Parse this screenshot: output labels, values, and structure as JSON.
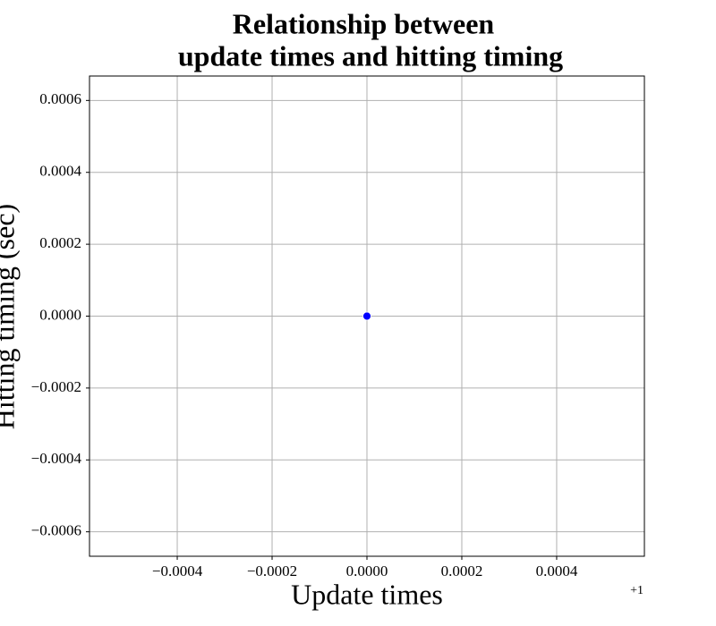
{
  "chart_data": {
    "type": "scatter",
    "title": [
      "Relationship between",
      "update times and hitting timing"
    ],
    "xlabel": "Update times",
    "ylabel": "Hitting timing (sec)",
    "x_offset_label": "+1",
    "x": [
      1
    ],
    "y": [
      0
    ],
    "color": "blue",
    "xlim": [
      0.999415,
      1.000585
    ],
    "ylim": [
      -0.000668,
      0.000668
    ],
    "xticks": [
      {
        "value": 0.9996,
        "label": "−0.0004"
      },
      {
        "value": 0.9998,
        "label": "−0.0002"
      },
      {
        "value": 1.0,
        "label": "0.0000"
      },
      {
        "value": 1.0002,
        "label": "0.0002"
      },
      {
        "value": 1.0004,
        "label": "0.0004"
      }
    ],
    "yticks": [
      {
        "value": -0.0006,
        "label": "−0.0006"
      },
      {
        "value": -0.0004,
        "label": "−0.0004"
      },
      {
        "value": -0.0002,
        "label": "−0.0002"
      },
      {
        "value": 0,
        "label": "0.0000"
      },
      {
        "value": 0.0002,
        "label": "0.0002"
      },
      {
        "value": 0.0004,
        "label": "0.0004"
      },
      {
        "value": 0.0006,
        "label": "0.0006"
      }
    ],
    "grid": true
  }
}
